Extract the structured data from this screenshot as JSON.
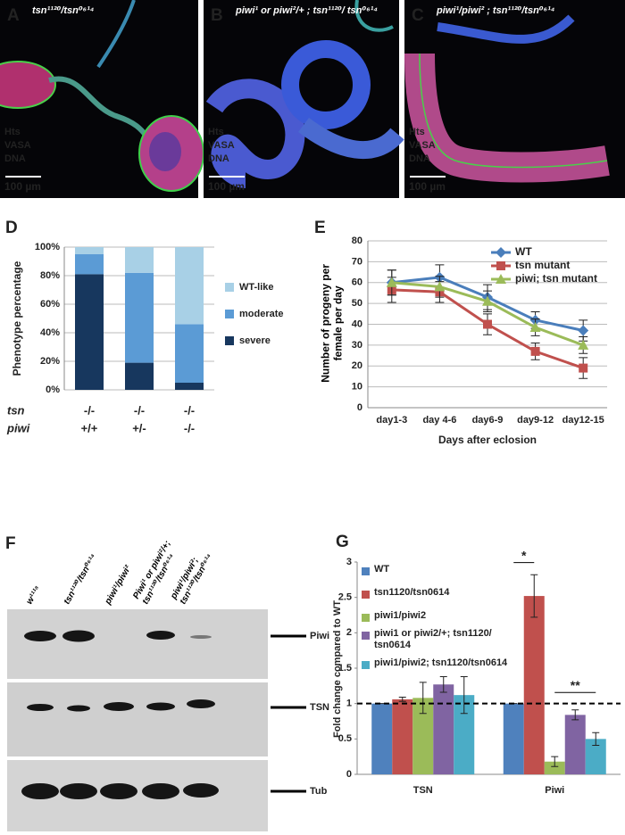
{
  "micrographs": [
    {
      "label": "A",
      "genotype": "tsn¹¹²⁰/tsn⁰⁶¹⁴",
      "stains": [
        "Hts",
        "VASA",
        "DNA"
      ],
      "scale_bar": "100 µm"
    },
    {
      "label": "B",
      "genotype": "piwi¹ or piwi²/+ ;  tsn¹¹²⁰/ tsn⁰⁶¹⁴",
      "stains": [
        "Hts",
        "VASA",
        "DNA"
      ],
      "scale_bar": "100 µm"
    },
    {
      "label": "C",
      "genotype": "piwi¹/piwi² ;  tsn¹¹²⁰/tsn⁰⁶¹⁴",
      "stains": [
        "Hts",
        "VASA",
        "DNA"
      ],
      "scale_bar": "100 µm"
    }
  ],
  "stain_colors": [
    "#33e03a",
    "#e8202a",
    "#3a3cf0"
  ],
  "chart_data": [
    {
      "type": "bar",
      "stacked": true,
      "label": "D",
      "ylabel": "Phenotype percentage",
      "category_rows": [
        {
          "name": "tsn",
          "labels": [
            "-/-",
            "-/-",
            "-/-"
          ]
        },
        {
          "name": "piwi",
          "labels": [
            "+/+",
            "+/-",
            "-/-"
          ]
        }
      ],
      "series": [
        {
          "name": "severe",
          "color": "#17375e",
          "values": [
            81,
            19,
            5
          ]
        },
        {
          "name": "moderate",
          "color": "#5b9bd5",
          "values": [
            14,
            63,
            41
          ]
        },
        {
          "name": "WT-like",
          "color": "#a8d0e6",
          "values": [
            5,
            18,
            54
          ]
        }
      ],
      "ylim": [
        0,
        100
      ],
      "yticks": [
        {
          "value": 0,
          "label": "0%"
        },
        {
          "value": 20,
          "label": "20%"
        },
        {
          "value": 40,
          "label": "40%"
        },
        {
          "value": 60,
          "label": "60%"
        },
        {
          "value": 80,
          "label": "80%"
        },
        {
          "value": 100,
          "label": "100%"
        }
      ],
      "grid": true,
      "legend": "right"
    },
    {
      "type": "line",
      "label": "E",
      "xlabel": "Days after eclosion",
      "ylabel": "Number of progeny per female per day",
      "categories": [
        "day1-3",
        "day 4-6",
        "day6-9",
        "day9-12",
        "day12-15"
      ],
      "series": [
        {
          "name": "WT",
          "color": "#4a7ebb",
          "marker": "diamond",
          "values": [
            60,
            62.5,
            53,
            42,
            37
          ],
          "errors": [
            6,
            6,
            6,
            4,
            5
          ]
        },
        {
          "name": "tsn mutant",
          "color": "#c0504d",
          "marker": "square",
          "values": [
            56.5,
            55.5,
            40,
            27,
            19
          ],
          "errors": [
            6,
            5,
            5,
            4,
            5
          ]
        },
        {
          "name": "piwi; tsn mutant",
          "color": "#9bbb59",
          "marker": "triangle",
          "values": [
            60,
            58,
            51,
            38.5,
            30
          ],
          "errors": [
            6,
            5,
            5,
            4,
            4
          ]
        }
      ],
      "ylim": [
        0,
        80
      ],
      "yticks": [
        0,
        10,
        20,
        30,
        40,
        50,
        60,
        70,
        80
      ],
      "grid": true,
      "legend": "upper right"
    },
    {
      "type": "bar",
      "label": "G",
      "ylabel": "Fold change compared to WT",
      "categories": [
        "TSN",
        "Piwi"
      ],
      "series": [
        {
          "name": "WT",
          "color": "#4f81bd",
          "values": [
            1,
            1
          ],
          "errors": [
            0,
            0
          ]
        },
        {
          "name": "tsn1120/tsn0614",
          "color": "#c0504d",
          "values": [
            1.06,
            2.52
          ],
          "errors": [
            0.03,
            0.3
          ]
        },
        {
          "name": "piwi1/piwi2",
          "color": "#9bbb59",
          "values": [
            1.08,
            0.18
          ],
          "errors": [
            0.22,
            0.07
          ]
        },
        {
          "name": "piwi1 or piwi2/+; tsn1120/ tsn0614",
          "color": "#8064a2",
          "values": [
            1.27,
            0.84
          ],
          "errors": [
            0.11,
            0.07
          ]
        },
        {
          "name": "piwi1/piwi2; tsn1120/tsn0614",
          "color": "#4bacc6",
          "values": [
            1.12,
            0.5
          ],
          "errors": [
            0.26,
            0.09
          ]
        }
      ],
      "ylim": [
        0,
        3
      ],
      "yticks": [
        0,
        0.5,
        1,
        1.5,
        2,
        2.5,
        3
      ],
      "reference_line": 1,
      "annotations": [
        {
          "text": "*"
        },
        {
          "text": "**"
        }
      ],
      "legend": "upper left"
    }
  ],
  "western_blot": {
    "label": "F",
    "lanes": [
      "w¹¹¹⁸",
      "tsn¹¹²⁰/tsn⁰⁶¹⁴",
      "piwi¹/piwi²",
      "Piwi¹ or piwi²/+; tsn¹¹²⁰/tsn⁰⁶¹⁴",
      "piwi¹/piwi²; tsn¹¹²⁰/tsn⁰⁶¹⁴"
    ],
    "bands": [
      "Piwi",
      "TSN",
      "Tub"
    ]
  }
}
